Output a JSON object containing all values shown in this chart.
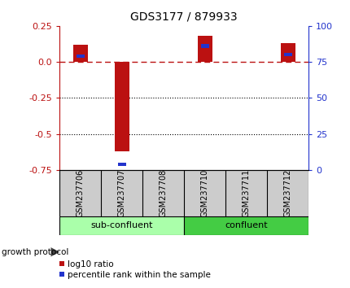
{
  "title": "GDS3177 / 879933",
  "samples": [
    "GSM237706",
    "GSM237707",
    "GSM237708",
    "GSM237710",
    "GSM237711",
    "GSM237712"
  ],
  "log10_ratio": [
    0.12,
    -0.62,
    0.0,
    0.18,
    0.0,
    0.13
  ],
  "percentile_rank": [
    79,
    4,
    0,
    86,
    0,
    80
  ],
  "ylim_left": [
    -0.75,
    0.25
  ],
  "ylim_right": [
    0,
    100
  ],
  "yticks_left": [
    -0.75,
    -0.5,
    -0.25,
    0.0,
    0.25
  ],
  "yticks_right": [
    0,
    25,
    50,
    75,
    100
  ],
  "red_color": "#bb1111",
  "blue_color": "#2233cc",
  "groups": [
    {
      "label": "sub-confluent",
      "start": 0,
      "end": 3,
      "color": "#aaffaa"
    },
    {
      "label": "confluent",
      "start": 3,
      "end": 6,
      "color": "#44cc44"
    }
  ],
  "group_label": "growth protocol",
  "label_bgcolor": "#cccccc",
  "hline_y": 0.0,
  "dotted_lines": [
    -0.25,
    -0.5
  ],
  "legend_red_label": "log10 ratio",
  "legend_blue_label": "percentile rank within the sample"
}
